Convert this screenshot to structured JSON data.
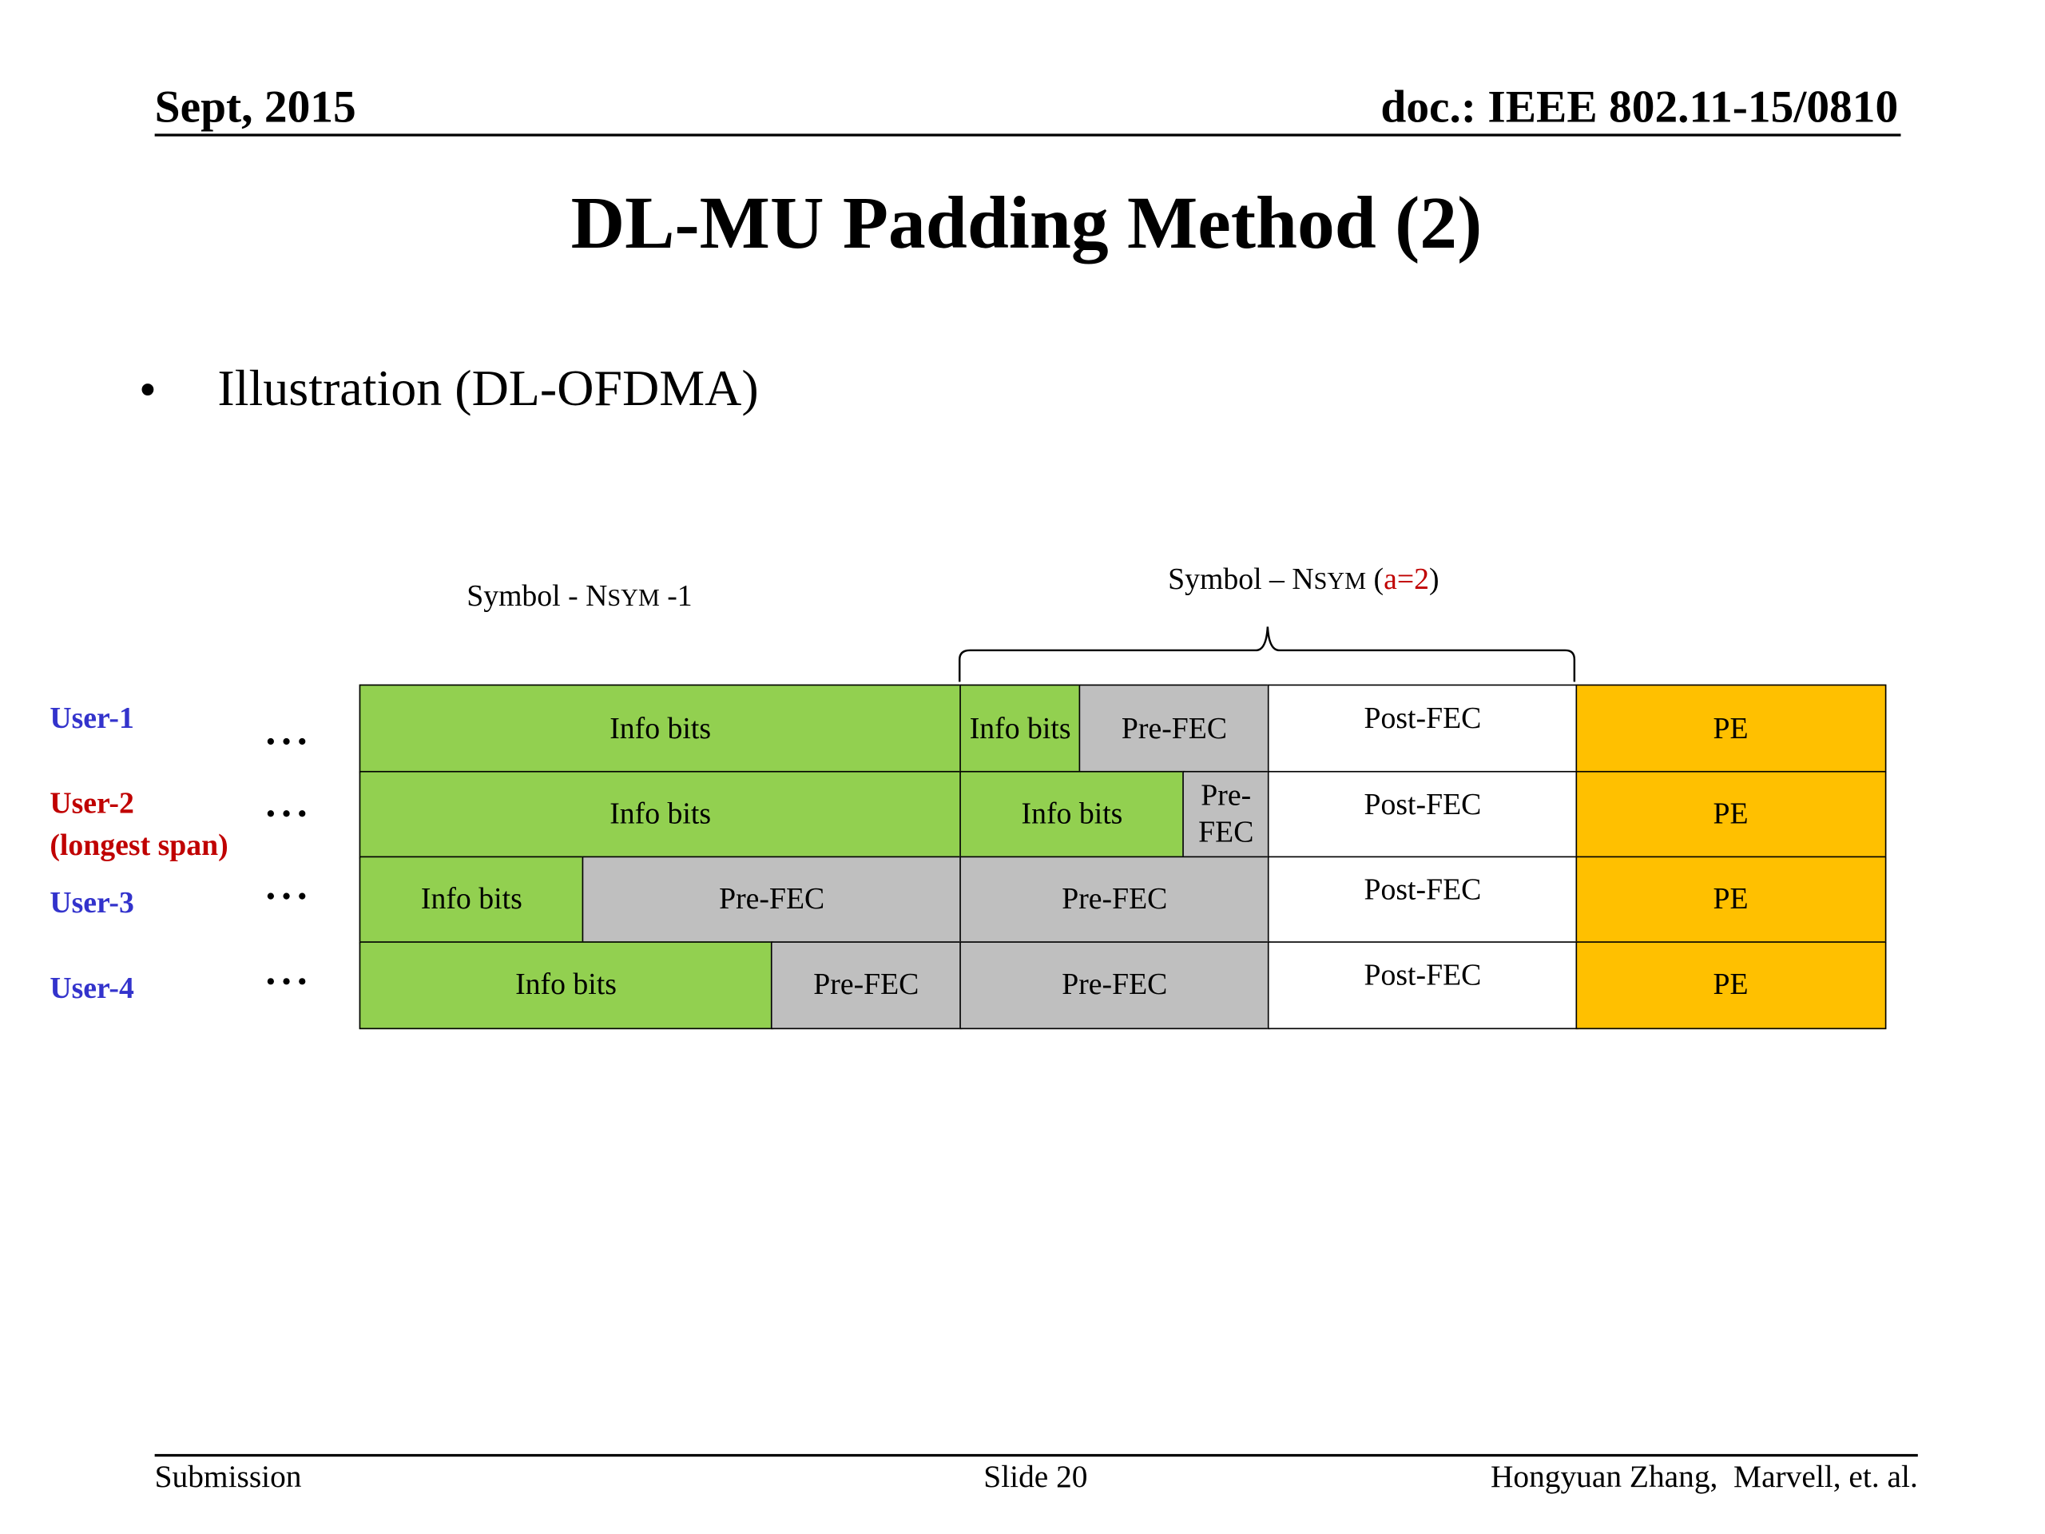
{
  "header": {
    "date": "Sept, 2015",
    "doc": "doc.: IEEE 802.11-15/0810"
  },
  "title": "DL-MU Padding Method (2)",
  "bullet": "Illustration (DL-OFDMA)",
  "symbol_left": {
    "prefix": "Symbol - N",
    "small": "SYM",
    "suffix": " -1"
  },
  "symbol_right": {
    "prefix": "Symbol – N",
    "small": "SYM",
    "open": " (",
    "param": "a=2",
    "close": ")"
  },
  "rows": [
    {
      "label": "User-1",
      "label_color": "#3333cc",
      "cells": [
        {
          "text": "Info bits",
          "color": "#92d050"
        },
        {
          "text": "Info bits",
          "color": "#92d050"
        },
        {
          "text": "Pre-FEC",
          "color": "#bfbfbf"
        },
        {
          "text": "Post-FEC",
          "color": "#ffffff"
        },
        {
          "text": "PE",
          "color": "#ffc000"
        }
      ]
    },
    {
      "label": "User-2\n(longest span)",
      "label_color": "#c00000",
      "cells": [
        {
          "text": "Info bits",
          "color": "#92d050"
        },
        {
          "text": "Info bits",
          "color": "#92d050"
        },
        {
          "text": "Pre-\nFEC",
          "color": "#bfbfbf"
        },
        {
          "text": "Post-FEC",
          "color": "#ffffff"
        },
        {
          "text": "PE",
          "color": "#ffc000"
        }
      ]
    },
    {
      "label": "User-3",
      "label_color": "#3333cc",
      "cells": [
        {
          "text": "Info bits",
          "color": "#92d050"
        },
        {
          "text": "Pre-FEC",
          "color": "#bfbfbf"
        },
        {
          "text": "Pre-FEC",
          "color": "#bfbfbf"
        },
        {
          "text": "Post-FEC",
          "color": "#ffffff"
        },
        {
          "text": "PE",
          "color": "#ffc000"
        }
      ]
    },
    {
      "label": "User-4",
      "label_color": "#3333cc",
      "cells": [
        {
          "text": "Info bits",
          "color": "#92d050"
        },
        {
          "text": "Pre-FEC",
          "color": "#bfbfbf"
        },
        {
          "text": "Pre-FEC",
          "color": "#bfbfbf"
        },
        {
          "text": "Post-FEC",
          "color": "#ffffff"
        },
        {
          "text": "PE",
          "color": "#ffc000"
        }
      ]
    }
  ],
  "footer": {
    "left": "Submission",
    "center": "Slide 20",
    "right": "Hongyuan Zhang,  Marvell, et. al."
  }
}
